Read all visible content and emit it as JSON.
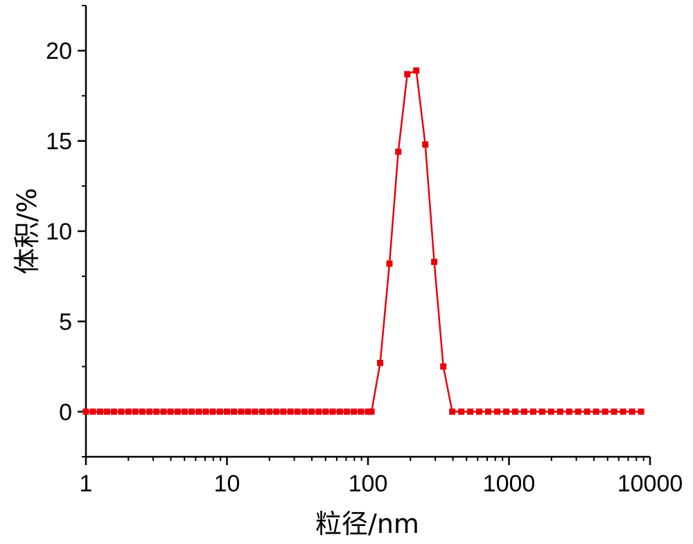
{
  "chart_data": {
    "type": "line",
    "title": "",
    "xlabel": "粒径/nm",
    "ylabel": "体积/%",
    "x_scale": "log",
    "xlim": [
      1,
      10000
    ],
    "ylim": [
      -2.5,
      22.5
    ],
    "x_ticks": [
      {
        "value": 1,
        "label": "1"
      },
      {
        "value": 10,
        "label": "10"
      },
      {
        "value": 100,
        "label": "100"
      },
      {
        "value": 1000,
        "label": "1000"
      },
      {
        "value": 10000,
        "label": "10000"
      }
    ],
    "y_ticks": [
      {
        "value": 0,
        "label": "0"
      },
      {
        "value": 5,
        "label": "5"
      },
      {
        "value": 10,
        "label": "10"
      },
      {
        "value": 15,
        "label": "15"
      },
      {
        "value": 20,
        "label": "20"
      }
    ],
    "grid": false,
    "legend": "none",
    "series": [
      {
        "color": "#e8000b",
        "marker": "square",
        "x": [
          1,
          1.12,
          1.26,
          1.41,
          1.58,
          1.78,
          2.0,
          2.24,
          2.51,
          2.82,
          3.16,
          3.55,
          3.98,
          4.47,
          5.01,
          5.62,
          6.31,
          7.08,
          7.94,
          8.91,
          10.0,
          11.2,
          12.6,
          14.1,
          15.8,
          17.8,
          20.0,
          22.4,
          25.1,
          28.2,
          31.6,
          35.5,
          39.8,
          44.7,
          50.1,
          56.2,
          63.1,
          70.8,
          79.4,
          89.1,
          100,
          106,
          122,
          142,
          164,
          190,
          220,
          255,
          295,
          342,
          396,
          459,
          531,
          615,
          712,
          825,
          955,
          1106,
          1281,
          1484,
          1718,
          1990,
          2305,
          2669,
          3091,
          3580,
          4146,
          4802,
          5561,
          6440,
          7459,
          8638
        ],
        "y": [
          0,
          0,
          0,
          0,
          0,
          0,
          0,
          0,
          0,
          0,
          0,
          0,
          0,
          0,
          0,
          0,
          0,
          0,
          0,
          0,
          0,
          0,
          0,
          0,
          0,
          0,
          0,
          0,
          0,
          0,
          0,
          0,
          0,
          0,
          0,
          0,
          0,
          0,
          0,
          0,
          0,
          0,
          2.7,
          8.2,
          14.4,
          18.7,
          18.9,
          14.8,
          8.3,
          2.5,
          0,
          0,
          0,
          0,
          0,
          0,
          0,
          0,
          0,
          0,
          0,
          0,
          0,
          0,
          0,
          0,
          0,
          0,
          0,
          0,
          0,
          0
        ]
      }
    ]
  }
}
